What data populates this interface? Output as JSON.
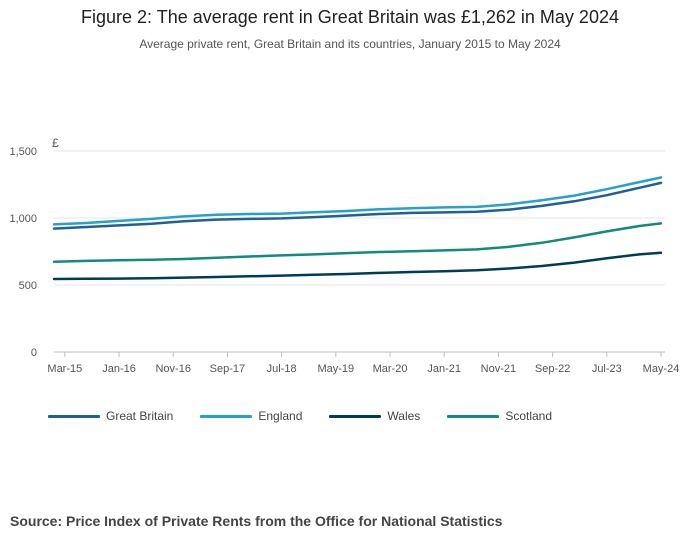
{
  "title": "Figure 2: The average rent in Great Britain was £1,262 in May 2024",
  "subtitle": "Average private rent, Great Britain and its countries, January 2015 to May 2024",
  "source": "Source: Price Index of Private Rents from the Office for National Statistics",
  "chart_data": {
    "type": "line",
    "y_unit": "£",
    "ylim": [
      0,
      1500
    ],
    "y_ticks": [
      0,
      500,
      1000,
      1500
    ],
    "y_tick_labels": [
      "0",
      "500",
      "1,000",
      "1,500"
    ],
    "x_ticks": [
      "Mar-15",
      "Jan-16",
      "Nov-16",
      "Sep-17",
      "Jul-18",
      "May-19",
      "Mar-20",
      "Jan-21",
      "Nov-21",
      "Sep-22",
      "Jul-23",
      "May-24"
    ],
    "grid": "horizontal",
    "legend_position": "bottom-left",
    "x": [
      "Jan-15",
      "Jul-15",
      "Jan-16",
      "Jul-16",
      "Jan-17",
      "Jul-17",
      "Jan-18",
      "Jul-18",
      "Jan-19",
      "Jul-19",
      "Jan-20",
      "Jul-20",
      "Jan-21",
      "Jul-21",
      "Jan-22",
      "Jul-22",
      "Jan-23",
      "Jul-23",
      "Jan-24",
      "May-24"
    ],
    "series": [
      {
        "name": "Great Britain",
        "color": "#206095",
        "values": [
          921,
          933,
          945,
          957,
          975,
          988,
          993,
          997,
          1007,
          1018,
          1030,
          1038,
          1042,
          1046,
          1063,
          1090,
          1125,
          1170,
          1225,
          1262
        ]
      },
      {
        "name": "England",
        "color": "#27a0cc",
        "values": [
          952,
          963,
          978,
          993,
          1012,
          1025,
          1030,
          1033,
          1043,
          1052,
          1065,
          1073,
          1079,
          1083,
          1102,
          1132,
          1167,
          1215,
          1268,
          1302
        ]
      },
      {
        "name": "Wales",
        "color": "#003c57",
        "values": [
          545,
          547,
          548,
          550,
          555,
          560,
          565,
          570,
          576,
          582,
          590,
          597,
          603,
          610,
          623,
          642,
          667,
          700,
          728,
          740
        ]
      },
      {
        "name": "Scotland",
        "color": "#118c7b",
        "values": [
          674,
          680,
          684,
          688,
          694,
          703,
          713,
          721,
          728,
          738,
          746,
          752,
          758,
          766,
          785,
          815,
          855,
          900,
          940,
          960
        ]
      }
    ]
  }
}
